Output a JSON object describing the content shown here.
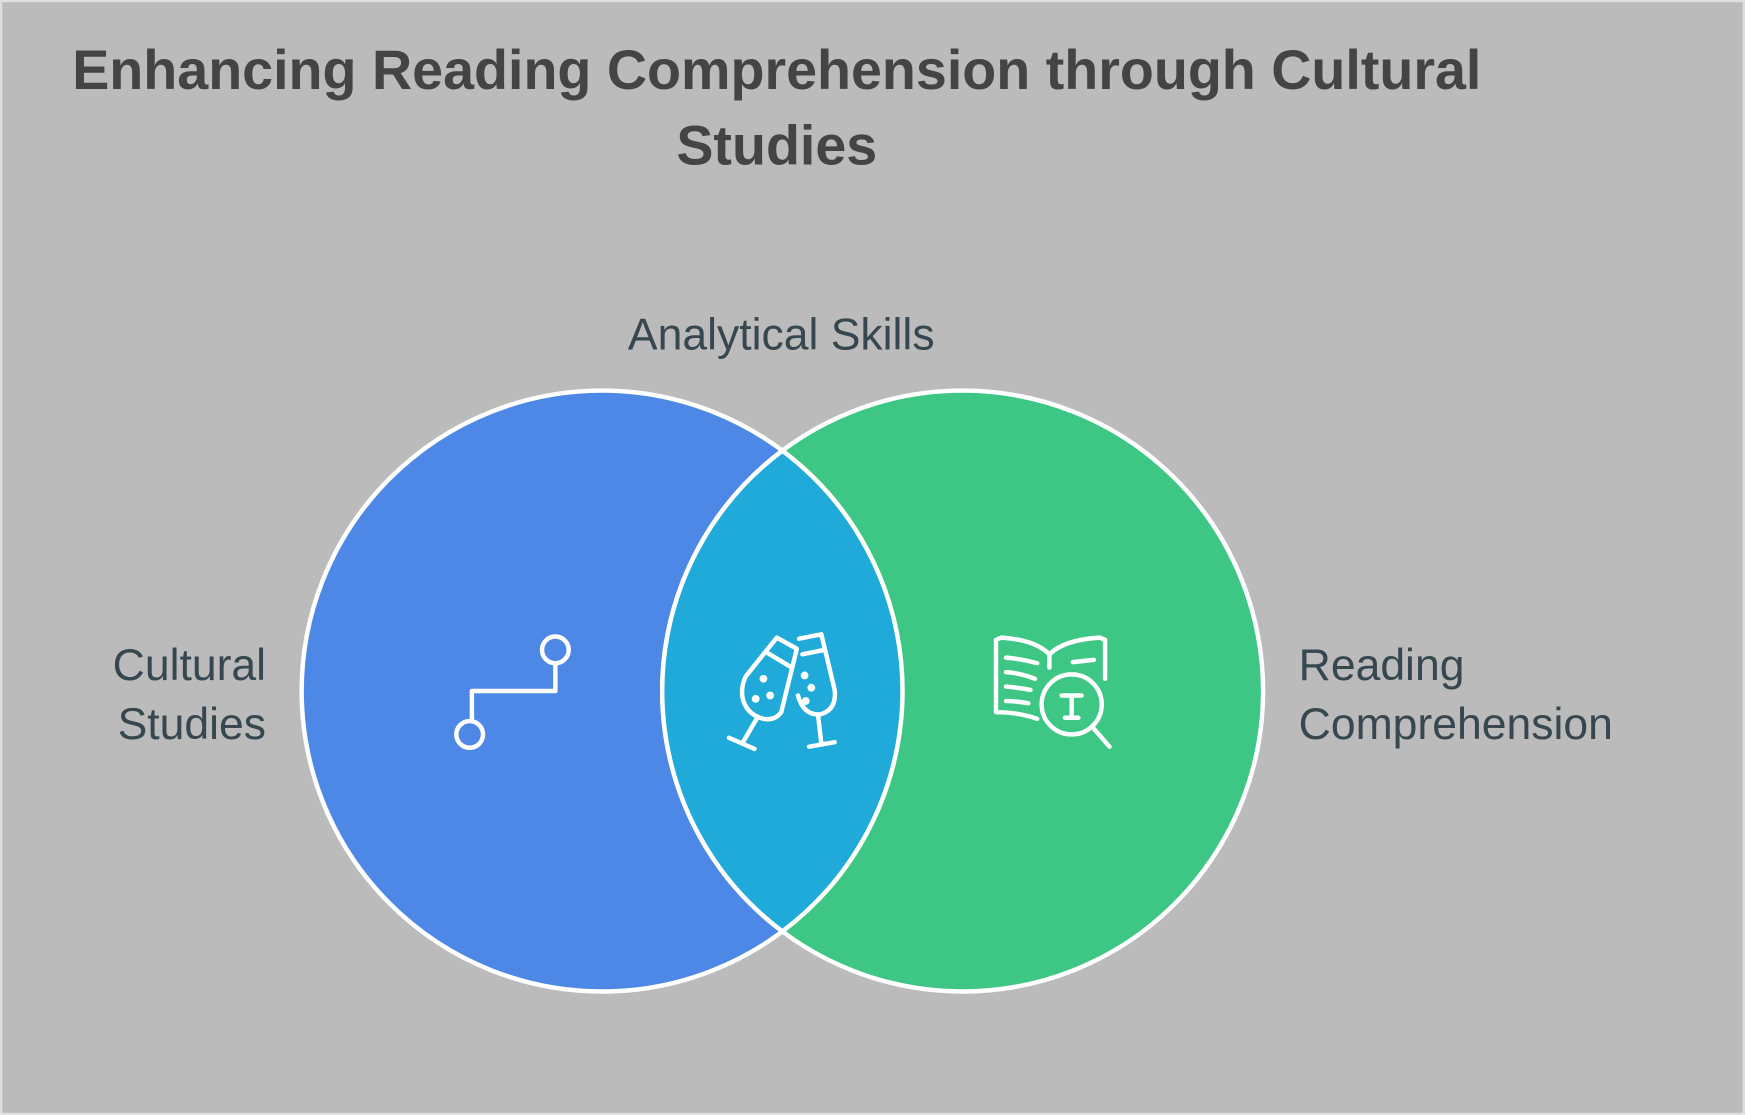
{
  "title": {
    "line1": "Enhancing Reading Comprehension through Cultural",
    "line2": "Studies"
  },
  "sets": [
    {
      "label_lines": [
        "Cultural",
        "Studies"
      ],
      "color": "#4e88e6",
      "icon": "path-route-icon"
    },
    {
      "label_lines": [
        "Reading",
        "Comprehension"
      ],
      "color": "#3ec685",
      "icon": "book-search-icon"
    }
  ],
  "intersection": {
    "label": "Analytical Skills",
    "color": "#1faad9",
    "icon": "champagne-glasses-icon"
  },
  "colors": {
    "background": "#bbbbbb",
    "outline": "#ffffff",
    "text": "#36474f"
  }
}
